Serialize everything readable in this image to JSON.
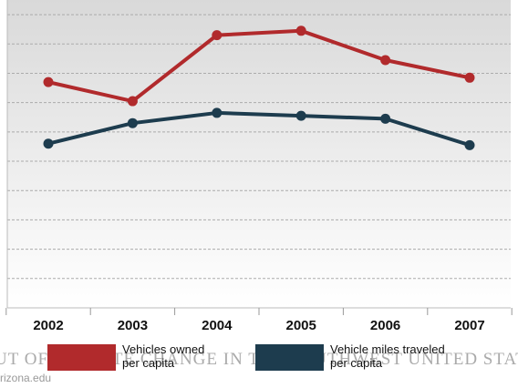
{
  "chart_data": {
    "type": "line",
    "x": [
      "2002",
      "2003",
      "2004",
      "2005",
      "2006",
      "2007"
    ],
    "series": [
      {
        "name": "Vehicles owned per capita",
        "name_lines": [
          "Vehicles owned",
          "per capita"
        ],
        "color": "#b12a2c",
        "values": [
          7.7,
          7.05,
          9.3,
          9.45,
          8.45,
          7.85
        ]
      },
      {
        "name": "Vehicle miles traveled per capita",
        "name_lines": [
          "Vehicle miles traveled",
          "per capita"
        ],
        "color": "#1d3c4e",
        "values": [
          5.6,
          6.3,
          6.65,
          6.55,
          6.45,
          5.55
        ]
      }
    ],
    "ylim": [
      0,
      10.5
    ],
    "grid": true,
    "legend": "bottom"
  },
  "watermark": {
    "line1": "UT OF CLIMATE CHANGE IN THE SOUTHWEST UNITED STATES",
    "line2": "rizona.edu"
  }
}
